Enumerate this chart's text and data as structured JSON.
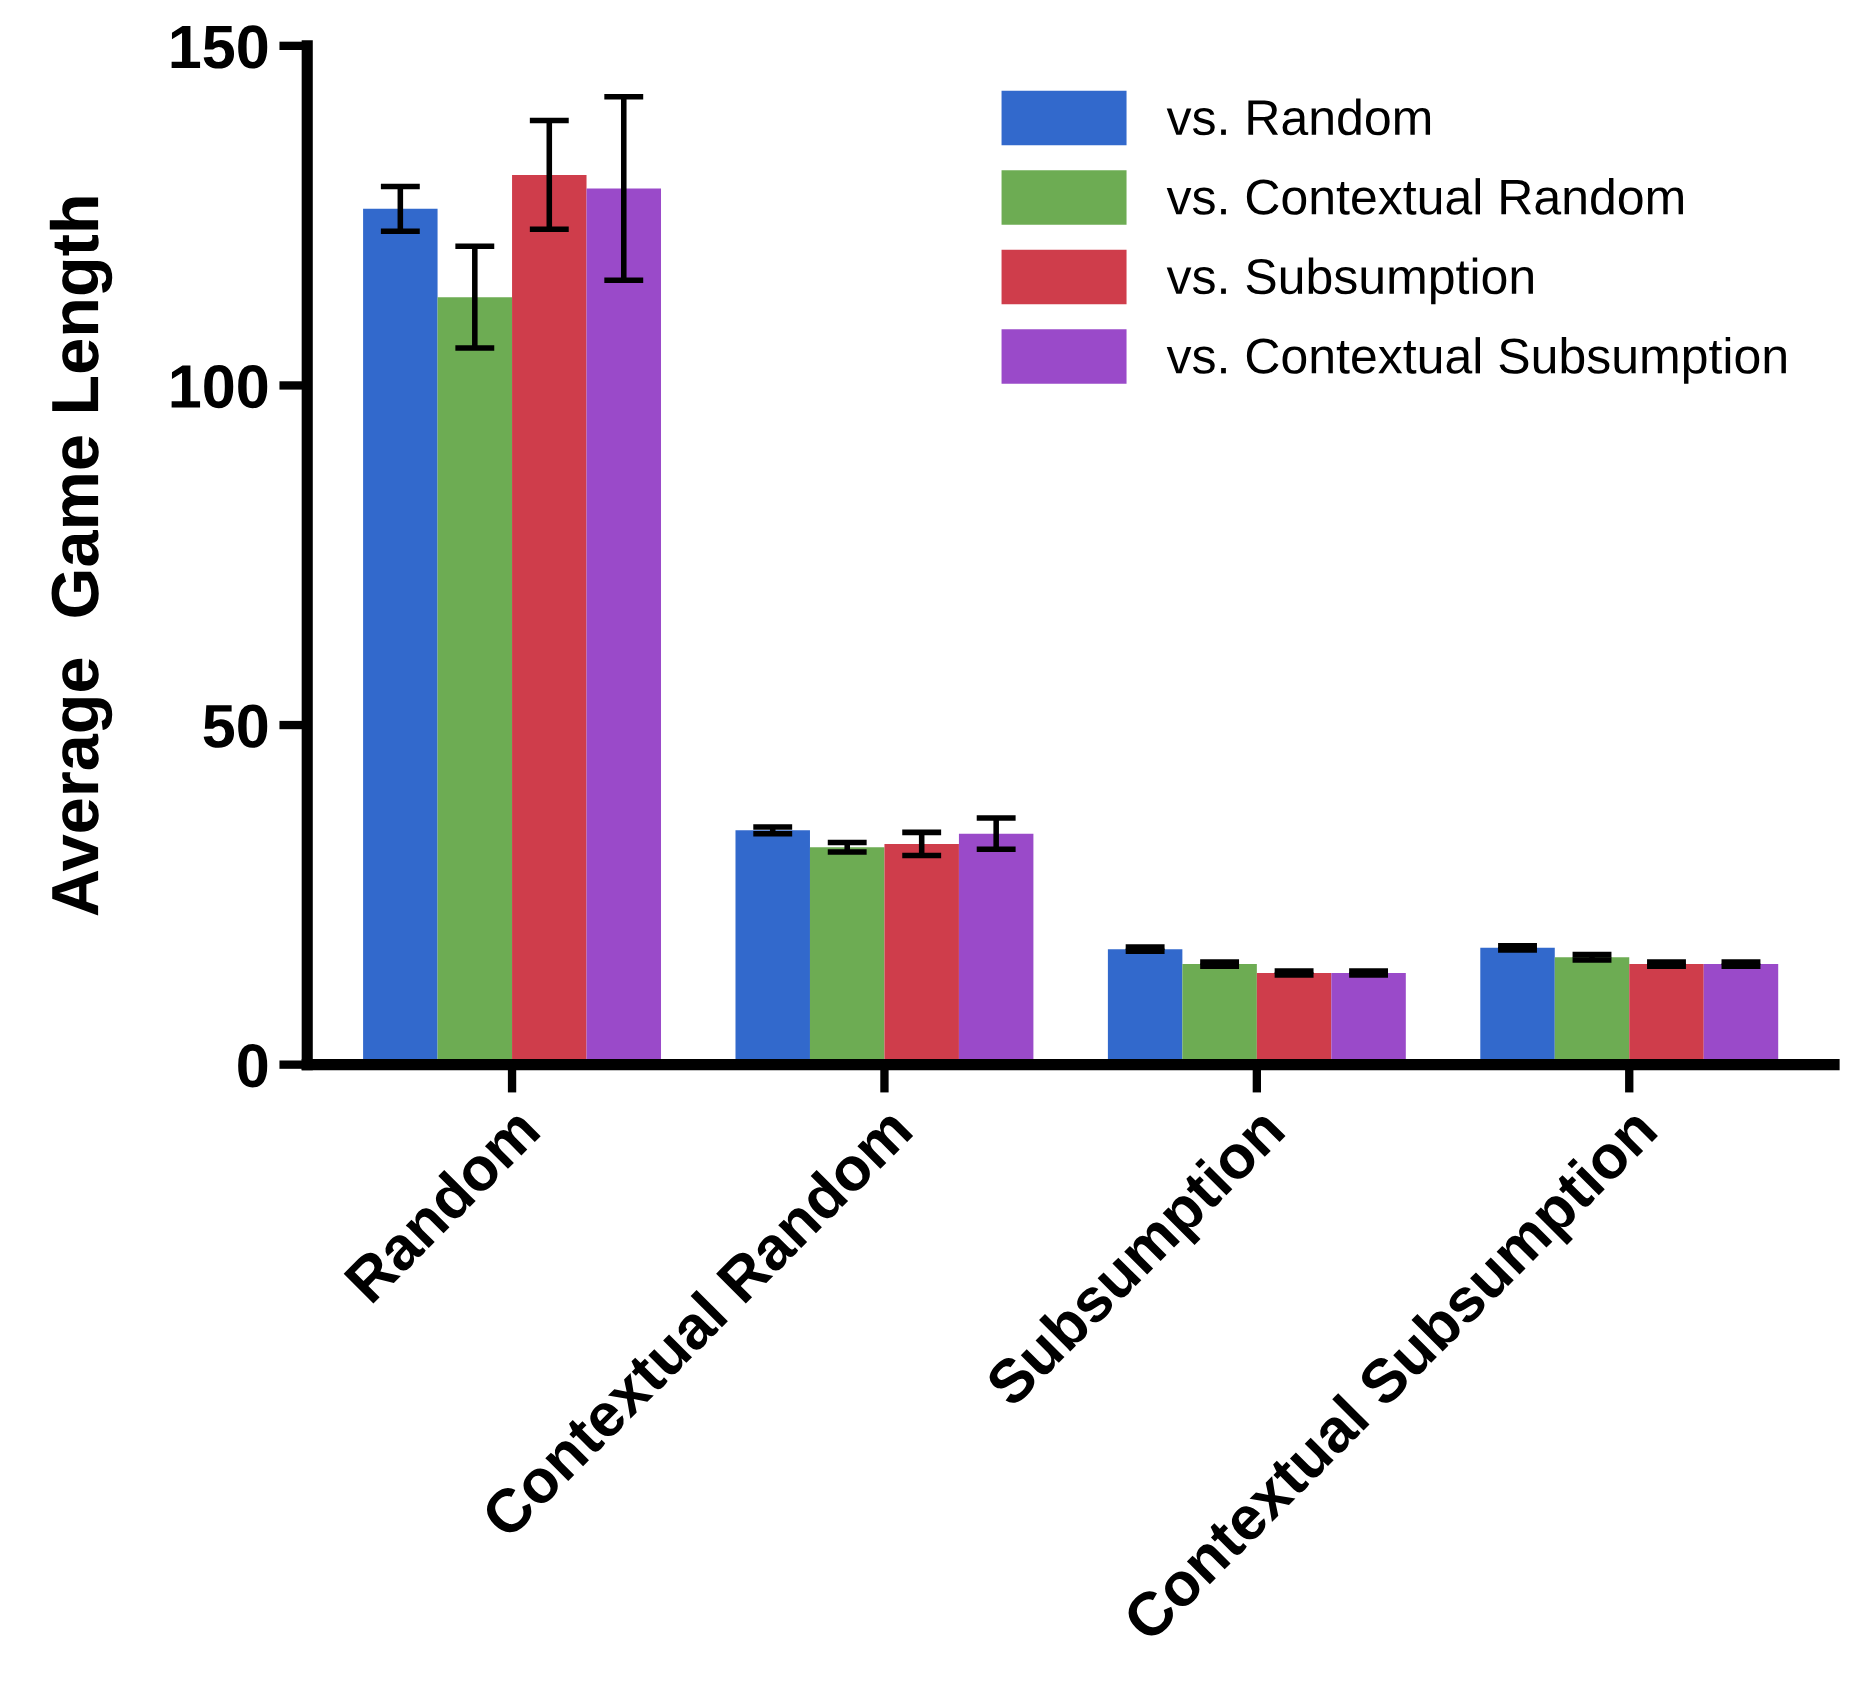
{
  "chart_data": {
    "type": "bar",
    "ylabel": "Average  Game Length",
    "categories": [
      "Random",
      "Contextual Random",
      "Subsumption",
      "Contextual Subsumption"
    ],
    "series": [
      {
        "name": "vs. Random",
        "color": "#3269cc",
        "values": [
          126,
          34.5,
          17,
          17.2
        ],
        "errors": [
          3.3,
          0.5,
          0.3,
          0.3
        ]
      },
      {
        "name": "vs. Contextual Random",
        "color": "#6dac53",
        "values": [
          113,
          32,
          14.8,
          15.8
        ],
        "errors": [
          7.5,
          0.7,
          0.3,
          0.4
        ]
      },
      {
        "name": "vs. Subsumption",
        "color": "#cf3d4b",
        "values": [
          131,
          32.5,
          13.5,
          14.8
        ],
        "errors": [
          8,
          1.7,
          0.3,
          0.3
        ]
      },
      {
        "name": "vs. Contextual Subsumption",
        "color": "#9a4ac9",
        "values": [
          129,
          34,
          13.5,
          14.8
        ],
        "errors": [
          13.5,
          2.3,
          0.3,
          0.3
        ]
      }
    ],
    "ylim": [
      0,
      150
    ],
    "yticks": [
      0,
      50,
      100,
      150
    ],
    "legend": "top right",
    "grid": false
  }
}
